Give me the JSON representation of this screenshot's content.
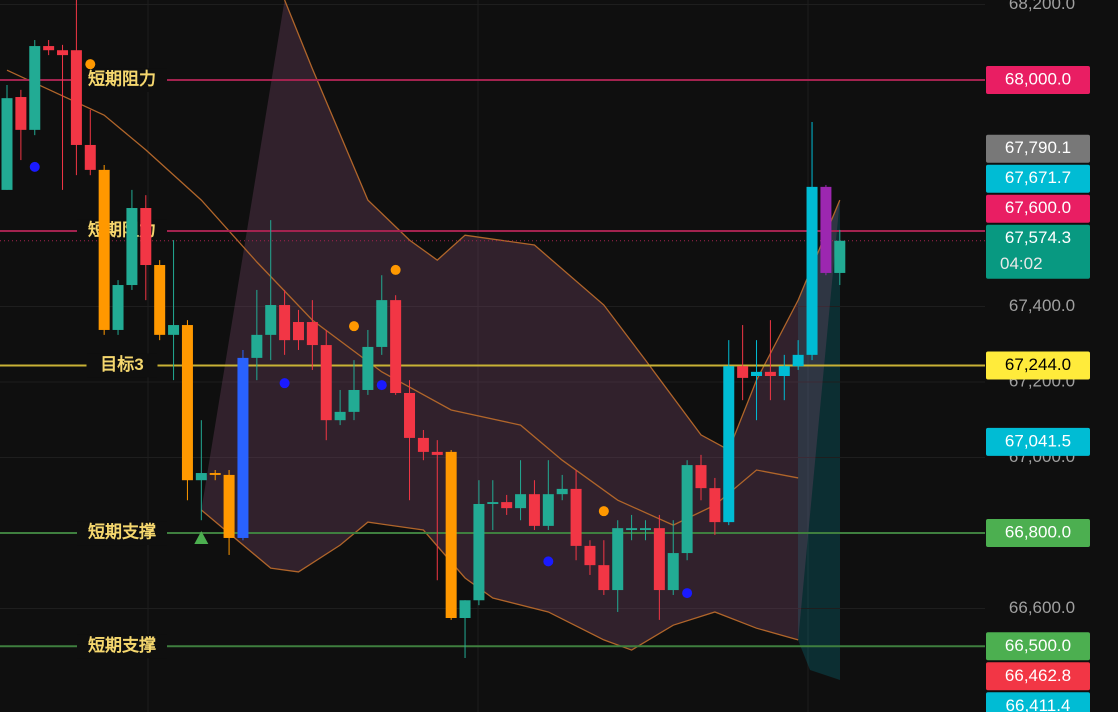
{
  "chart_data": {
    "type": "candlestick",
    "ylim": [
      66326,
      68212
    ],
    "yticks": [
      {
        "value": 66600,
        "label": "66,600.0"
      },
      {
        "value": 67000,
        "label": "67,000.0"
      },
      {
        "value": 67200,
        "label": "67,200.0"
      },
      {
        "value": 67400,
        "label": "67,400.0"
      },
      {
        "value": 68200,
        "label": "68,200.0"
      }
    ],
    "open": [
      67709,
      67955,
      67868,
      68090,
      68079,
      68079,
      67828,
      67762,
      67338,
      67457,
      67661,
      67510,
      67325,
      67351,
      66940,
      66959,
      66954,
      66787,
      67264,
      67325,
      67404,
      67359,
      67359,
      67298,
      67099,
      67121,
      67179,
      67293,
      67417,
      67171,
      67052,
      67015,
      67015,
      66575,
      66622,
      66877,
      66882,
      66866,
      66903,
      66819,
      66903,
      66917,
      66766,
      66715,
      66649,
      66808,
      66808,
      66813,
      66649,
      66747,
      66980,
      66919,
      66829,
      67242,
      67216,
      67227,
      67216,
      67242,
      67272,
      67717,
      67489
    ],
    "high": [
      67987,
      67974,
      68106,
      68106,
      68093,
      68212,
      67921,
      67775,
      67470,
      67709,
      67695,
      67523,
      67576,
      67364,
      67099,
      66967,
      66967,
      67285,
      67444,
      67629,
      67444,
      67391,
      67417,
      67338,
      67179,
      67258,
      67338,
      67483,
      67430,
      67205,
      67073,
      67046,
      67020,
      66622,
      66940,
      66940,
      66901,
      66993,
      66940,
      66993,
      66954,
      66967,
      66781,
      66781,
      66834,
      66848,
      66834,
      66848,
      66834,
      66993,
      67007,
      66946,
      67311,
      67351,
      67311,
      67364,
      67272,
      67311,
      67889,
      67722,
      67603
    ],
    "low": [
      67709,
      67788,
      67854,
      68066,
      67709,
      67748,
      67748,
      67325,
      67325,
      67444,
      67417,
      67311,
      67205,
      66887,
      66834,
      66940,
      66742,
      66781,
      67205,
      67258,
      67272,
      67285,
      67232,
      67046,
      67086,
      67099,
      67166,
      67272,
      67166,
      66887,
      66993,
      66675,
      66570,
      66469,
      66609,
      66808,
      66848,
      66834,
      66808,
      66808,
      66887,
      66728,
      66689,
      66636,
      66591,
      66781,
      66781,
      66570,
      66636,
      66728,
      66887,
      66795,
      66821,
      67152,
      67099,
      67152,
      67152,
      67232,
      67258,
      67483,
      67457
    ],
    "close": [
      67952,
      67868,
      68090,
      68079,
      68066,
      67828,
      67762,
      67338,
      67457,
      67661,
      67510,
      67325,
      67351,
      66940,
      66959,
      66954,
      66787,
      67264,
      67325,
      67404,
      67311,
      67311,
      67298,
      67099,
      67121,
      67179,
      67293,
      67417,
      67171,
      67052,
      67015,
      67007,
      66575,
      66622,
      66877,
      66882,
      66866,
      66903,
      66819,
      66903,
      66917,
      66766,
      66715,
      66649,
      66813,
      66813,
      66813,
      66649,
      66747,
      66980,
      66919,
      66829,
      67242,
      67211,
      67227,
      67216,
      67242,
      67272,
      67717,
      67489,
      67574.3
    ],
    "colors": [
      "#22ab94",
      "#f23645",
      "#22ab94",
      "#f23645",
      "#f23645",
      "#f23645",
      "#f23645",
      "#ff9800",
      "#22ab94",
      "#22ab94",
      "#f23645",
      "#ff9800",
      "#22ab94",
      "#ff9800",
      "#22ab94",
      "#ff9800",
      "#ff9800",
      "#2962ff",
      "#22ab94",
      "#22ab94",
      "#f23645",
      "#f23645",
      "#f23645",
      "#f23645",
      "#22ab94",
      "#22ab94",
      "#22ab94",
      "#22ab94",
      "#f23645",
      "#f23645",
      "#f23645",
      "#f23645",
      "#ff9800",
      "#22ab94",
      "#22ab94",
      "#22ab94",
      "#f23645",
      "#22ab94",
      "#f23645",
      "#22ab94",
      "#22ab94",
      "#f23645",
      "#f23645",
      "#f23645",
      "#22ab94",
      "#22ab94",
      "#22ab94",
      "#f23645",
      "#22ab94",
      "#22ab94",
      "#f23645",
      "#f23645",
      "#00bcd4",
      "#f23645",
      "#00bcd4",
      "#f23645",
      "#00bcd4",
      "#00bcd4",
      "#00bcd4",
      "#9c27b0",
      "#22ab94"
    ],
    "bands": {
      "color": "#b0652a",
      "fill": "rgba(120,70,105,0.32)",
      "upper": {
        "x": [
          20,
          22,
          26,
          29,
          31,
          33,
          38,
          43,
          46,
          50,
          52,
          54,
          57,
          60
        ],
        "values": [
          68212,
          68030,
          67682,
          67576,
          67523,
          67589,
          67563,
          67404,
          67258,
          67060,
          67020,
          67205,
          67417,
          67682
        ]
      },
      "middle": {
        "x": [
          0,
          7,
          10,
          14,
          18,
          22,
          27,
          32,
          37,
          40,
          44,
          48,
          51,
          54,
          57
        ],
        "values": [
          68026,
          67907,
          67815,
          67682,
          67518,
          67364,
          67227,
          67126,
          67086,
          66993,
          66887,
          66821,
          66874,
          66967,
          66946
        ]
      },
      "lower": {
        "x": [
          14,
          19,
          21,
          24,
          26,
          30,
          33,
          35,
          39,
          43,
          45,
          48,
          51,
          54,
          57
        ],
        "values": [
          66861,
          66707,
          66697,
          66768,
          66829,
          66808,
          66681,
          66628,
          66591,
          66517,
          66490,
          66556,
          66591,
          66548,
          66517
        ]
      }
    },
    "markers": [
      {
        "x": 6,
        "y": 68042,
        "shape": "circle",
        "color": "#ff9800"
      },
      {
        "x": 28,
        "y": 67497,
        "shape": "circle",
        "color": "#ff9800"
      },
      {
        "x": 25,
        "y": 67348,
        "shape": "circle",
        "color": "#ff9800"
      },
      {
        "x": 43,
        "y": 66858,
        "shape": "circle",
        "color": "#ff9800"
      },
      {
        "x": 2,
        "y": 67770,
        "shape": "circle",
        "color": "#1a1aff"
      },
      {
        "x": 20,
        "y": 67197,
        "shape": "circle",
        "color": "#1a1aff"
      },
      {
        "x": 27,
        "y": 67192,
        "shape": "circle",
        "color": "#1a1aff"
      },
      {
        "x": 39,
        "y": 66725,
        "shape": "circle",
        "color": "#1a1aff"
      },
      {
        "x": 49,
        "y": 66641,
        "shape": "circle",
        "color": "#1a1aff"
      },
      {
        "x": 14,
        "y": 66787,
        "shape": "triangle",
        "color": "#4caf50"
      }
    ],
    "levels": [
      {
        "value": 68000,
        "label": "短期阻力",
        "color": "#a3234f"
      },
      {
        "value": 67600,
        "label": "短期阻力",
        "color": "#a3234f"
      },
      {
        "value": 67244,
        "label": "目标3",
        "color": "#c8b235"
      },
      {
        "value": 66800,
        "label": "短期支撑",
        "color": "#3f7f3f"
      },
      {
        "value": 66500,
        "label": "短期支撑",
        "color": "#3f7f3f"
      }
    ],
    "tags": [
      {
        "value": 68000,
        "label": "68,000.0",
        "color": "#e91e63"
      },
      {
        "value": 67790.1,
        "label": "67,790.1",
        "color": "#787878"
      },
      {
        "value": 67671.7,
        "label": "67,671.7",
        "color": "#00bcd4"
      },
      {
        "value": 67600,
        "label": "67,600.0",
        "color": "#e91e63"
      },
      {
        "value": 67574.3,
        "label": "67,574.3",
        "color": "#089981",
        "countdown": "04:02"
      },
      {
        "value": 67244,
        "label": "67,244.0",
        "color": "#ffeb3b"
      },
      {
        "value": 67041.5,
        "label": "67,041.5",
        "color": "#00bcd4"
      },
      {
        "value": 66800,
        "label": "66,800.0",
        "color": "#4caf50"
      },
      {
        "value": 66500,
        "label": "66,500.0",
        "color": "#4caf50"
      },
      {
        "value": 66462.8,
        "label": "66,462.8",
        "color": "#f23645"
      },
      {
        "value": 66411.4,
        "label": "66,411.4",
        "color": "#00bcd4"
      }
    ]
  }
}
